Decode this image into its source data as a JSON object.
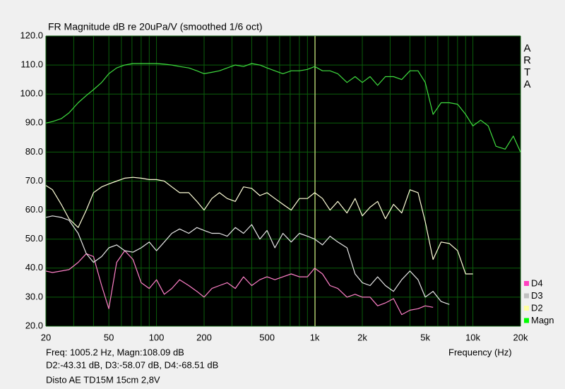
{
  "chart_data": {
    "type": "line",
    "log_x": true,
    "title": "FR Magnitude dB re 20uPa/V (smoothed 1/6 oct)",
    "brand": "ARTA",
    "x_label": "Frequency (Hz)",
    "status": [
      "Freq: 1005.2 Hz, Magn:108.09 dB",
      "D2:-43.31 dB, D3:-58.07 dB, D4:-68.51 dB",
      "Disto AE TD15M 15cm 2,8V"
    ],
    "cursor_x": 1005.2,
    "cursor_color": "#ffffa0",
    "background": "#000000",
    "grid_color": "#0b5e0b",
    "xlim": [
      20,
      20000
    ],
    "ylim": [
      20,
      120
    ],
    "xticks": [
      20,
      50,
      100,
      200,
      500,
      {
        "value": 1000,
        "label": "1k"
      },
      {
        "value": 2000,
        "label": "2k"
      },
      {
        "value": 5000,
        "label": "5k"
      },
      {
        "value": 10000,
        "label": "10k"
      },
      {
        "value": 20000,
        "label": "20k"
      }
    ],
    "xgrid": [
      30,
      40,
      60,
      70,
      80,
      90,
      300,
      400,
      600,
      700,
      800,
      900,
      3000,
      4000,
      6000,
      7000,
      8000,
      9000
    ],
    "yticks": [
      {
        "value": 20,
        "label": "20.0"
      },
      {
        "value": 30,
        "label": "30.0"
      },
      {
        "value": 40,
        "label": "40.0"
      },
      {
        "value": 50,
        "label": "50.0"
      },
      {
        "value": 60,
        "label": "60.0"
      },
      {
        "value": 70,
        "label": "70.0"
      },
      {
        "value": 80,
        "label": "80.0"
      },
      {
        "value": 90,
        "label": "90.0"
      },
      {
        "value": 100,
        "label": "100.0"
      },
      {
        "value": 110,
        "label": "110.0"
      },
      {
        "value": 120,
        "label": "120.0"
      }
    ],
    "grid": true,
    "x": [
      20,
      22,
      25,
      28,
      32,
      36,
      40,
      45,
      50,
      56,
      63,
      71,
      80,
      90,
      100,
      112,
      125,
      140,
      160,
      180,
      200,
      224,
      250,
      280,
      315,
      355,
      400,
      450,
      500,
      560,
      630,
      710,
      800,
      900,
      1000,
      1120,
      1250,
      1400,
      1600,
      1800,
      2000,
      2240,
      2500,
      2800,
      3150,
      3550,
      4000,
      4500,
      5000,
      5600,
      6300,
      7100,
      8000,
      9000,
      10000,
      11200,
      12500,
      14000,
      16000,
      18000,
      20000
    ],
    "series": [
      {
        "name": "D4",
        "color": "#ff80c8",
        "legend_color": "#ff40c0",
        "values": [
          39,
          38.5,
          39,
          39.5,
          42,
          45,
          44,
          34,
          26,
          42,
          46,
          43,
          35,
          33,
          36,
          31,
          33,
          36,
          34,
          32,
          30,
          33,
          34,
          35,
          33,
          37,
          34,
          36,
          37,
          36,
          37,
          38,
          37,
          37,
          40,
          38,
          34,
          33,
          30,
          31,
          30,
          30,
          27,
          28,
          29.5,
          24,
          25.5,
          26,
          27,
          26.5,
          null,
          null,
          null,
          null,
          null,
          null,
          null,
          null,
          null,
          null,
          null
        ]
      },
      {
        "name": "D3",
        "color": "#e8e8e8",
        "legend_color": "#c0c0c0",
        "values": [
          57.5,
          58,
          57.5,
          56.5,
          52,
          45,
          42,
          44,
          47,
          48,
          46,
          45.5,
          47,
          49,
          46,
          49,
          52,
          53.5,
          52,
          54,
          53,
          52,
          52,
          51,
          54,
          52,
          55,
          50,
          53,
          47,
          52,
          49,
          52,
          51,
          50,
          48,
          51,
          49,
          47,
          38,
          35,
          34,
          37,
          34,
          32,
          36,
          39,
          36,
          30,
          32,
          28.5,
          27.5,
          null,
          null,
          null,
          null,
          null,
          null,
          null,
          null,
          null
        ]
      },
      {
        "name": "D2",
        "color": "#ffffd8",
        "legend_color": "#ffffa0",
        "values": [
          68.5,
          67,
          62,
          57,
          54,
          60,
          66,
          68,
          69,
          70,
          71,
          71.3,
          71,
          70.5,
          70.5,
          70,
          68,
          66,
          66,
          63,
          60,
          64,
          66,
          64,
          63,
          68,
          67.5,
          65,
          66,
          64,
          62,
          60,
          64,
          64,
          66,
          64,
          60,
          63,
          59,
          64,
          58,
          61,
          63,
          57,
          62,
          59,
          67,
          66,
          56,
          43,
          49,
          48.5,
          46,
          38,
          38,
          null,
          null,
          null,
          null,
          null,
          null
        ]
      },
      {
        "name": "Magn",
        "color": "#3fdc3f",
        "legend_color": "#00ff00",
        "values": [
          90,
          90.5,
          91.5,
          93.5,
          97,
          99.5,
          101.5,
          104,
          107,
          109,
          110,
          110.5,
          110.5,
          110.5,
          110.5,
          110.3,
          110,
          109.5,
          109,
          108,
          107,
          107.5,
          108,
          109,
          110,
          109.5,
          110.5,
          110,
          109,
          108,
          107,
          108,
          108,
          108.5,
          109.5,
          108,
          108,
          107,
          104,
          106,
          104,
          106,
          103,
          106,
          106,
          105,
          108,
          108,
          104,
          93,
          97,
          97,
          96.5,
          93,
          89,
          91,
          89,
          82,
          81,
          85.5,
          80
        ]
      }
    ]
  }
}
